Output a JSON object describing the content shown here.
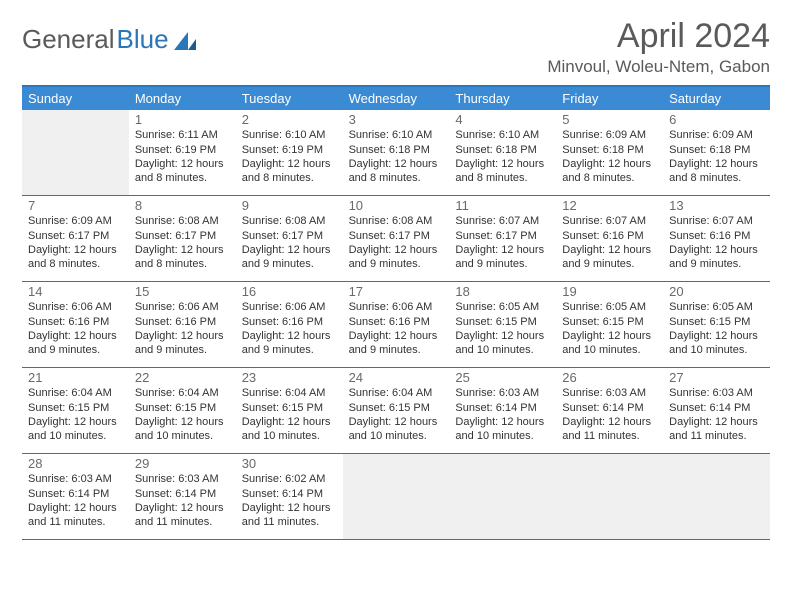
{
  "brand": {
    "text1": "General",
    "text2": "Blue"
  },
  "title": "April 2024",
  "location": "Minvoul, Woleu-Ntem, Gabon",
  "colors": {
    "header_bg": "#3b8bd4",
    "border": "#2a76b9",
    "text": "#333333",
    "muted": "#6a6a6a",
    "empty_bg": "#f0f0f0"
  },
  "daynames": [
    "Sunday",
    "Monday",
    "Tuesday",
    "Wednesday",
    "Thursday",
    "Friday",
    "Saturday"
  ],
  "weeks": [
    [
      {
        "n": "",
        "rise": "",
        "set": "",
        "day": ""
      },
      {
        "n": "1",
        "rise": "Sunrise: 6:11 AM",
        "set": "Sunset: 6:19 PM",
        "day": "Daylight: 12 hours and 8 minutes."
      },
      {
        "n": "2",
        "rise": "Sunrise: 6:10 AM",
        "set": "Sunset: 6:19 PM",
        "day": "Daylight: 12 hours and 8 minutes."
      },
      {
        "n": "3",
        "rise": "Sunrise: 6:10 AM",
        "set": "Sunset: 6:18 PM",
        "day": "Daylight: 12 hours and 8 minutes."
      },
      {
        "n": "4",
        "rise": "Sunrise: 6:10 AM",
        "set": "Sunset: 6:18 PM",
        "day": "Daylight: 12 hours and 8 minutes."
      },
      {
        "n": "5",
        "rise": "Sunrise: 6:09 AM",
        "set": "Sunset: 6:18 PM",
        "day": "Daylight: 12 hours and 8 minutes."
      },
      {
        "n": "6",
        "rise": "Sunrise: 6:09 AM",
        "set": "Sunset: 6:18 PM",
        "day": "Daylight: 12 hours and 8 minutes."
      }
    ],
    [
      {
        "n": "7",
        "rise": "Sunrise: 6:09 AM",
        "set": "Sunset: 6:17 PM",
        "day": "Daylight: 12 hours and 8 minutes."
      },
      {
        "n": "8",
        "rise": "Sunrise: 6:08 AM",
        "set": "Sunset: 6:17 PM",
        "day": "Daylight: 12 hours and 8 minutes."
      },
      {
        "n": "9",
        "rise": "Sunrise: 6:08 AM",
        "set": "Sunset: 6:17 PM",
        "day": "Daylight: 12 hours and 9 minutes."
      },
      {
        "n": "10",
        "rise": "Sunrise: 6:08 AM",
        "set": "Sunset: 6:17 PM",
        "day": "Daylight: 12 hours and 9 minutes."
      },
      {
        "n": "11",
        "rise": "Sunrise: 6:07 AM",
        "set": "Sunset: 6:17 PM",
        "day": "Daylight: 12 hours and 9 minutes."
      },
      {
        "n": "12",
        "rise": "Sunrise: 6:07 AM",
        "set": "Sunset: 6:16 PM",
        "day": "Daylight: 12 hours and 9 minutes."
      },
      {
        "n": "13",
        "rise": "Sunrise: 6:07 AM",
        "set": "Sunset: 6:16 PM",
        "day": "Daylight: 12 hours and 9 minutes."
      }
    ],
    [
      {
        "n": "14",
        "rise": "Sunrise: 6:06 AM",
        "set": "Sunset: 6:16 PM",
        "day": "Daylight: 12 hours and 9 minutes."
      },
      {
        "n": "15",
        "rise": "Sunrise: 6:06 AM",
        "set": "Sunset: 6:16 PM",
        "day": "Daylight: 12 hours and 9 minutes."
      },
      {
        "n": "16",
        "rise": "Sunrise: 6:06 AM",
        "set": "Sunset: 6:16 PM",
        "day": "Daylight: 12 hours and 9 minutes."
      },
      {
        "n": "17",
        "rise": "Sunrise: 6:06 AM",
        "set": "Sunset: 6:16 PM",
        "day": "Daylight: 12 hours and 9 minutes."
      },
      {
        "n": "18",
        "rise": "Sunrise: 6:05 AM",
        "set": "Sunset: 6:15 PM",
        "day": "Daylight: 12 hours and 10 minutes."
      },
      {
        "n": "19",
        "rise": "Sunrise: 6:05 AM",
        "set": "Sunset: 6:15 PM",
        "day": "Daylight: 12 hours and 10 minutes."
      },
      {
        "n": "20",
        "rise": "Sunrise: 6:05 AM",
        "set": "Sunset: 6:15 PM",
        "day": "Daylight: 12 hours and 10 minutes."
      }
    ],
    [
      {
        "n": "21",
        "rise": "Sunrise: 6:04 AM",
        "set": "Sunset: 6:15 PM",
        "day": "Daylight: 12 hours and 10 minutes."
      },
      {
        "n": "22",
        "rise": "Sunrise: 6:04 AM",
        "set": "Sunset: 6:15 PM",
        "day": "Daylight: 12 hours and 10 minutes."
      },
      {
        "n": "23",
        "rise": "Sunrise: 6:04 AM",
        "set": "Sunset: 6:15 PM",
        "day": "Daylight: 12 hours and 10 minutes."
      },
      {
        "n": "24",
        "rise": "Sunrise: 6:04 AM",
        "set": "Sunset: 6:15 PM",
        "day": "Daylight: 12 hours and 10 minutes."
      },
      {
        "n": "25",
        "rise": "Sunrise: 6:03 AM",
        "set": "Sunset: 6:14 PM",
        "day": "Daylight: 12 hours and 10 minutes."
      },
      {
        "n": "26",
        "rise": "Sunrise: 6:03 AM",
        "set": "Sunset: 6:14 PM",
        "day": "Daylight: 12 hours and 11 minutes."
      },
      {
        "n": "27",
        "rise": "Sunrise: 6:03 AM",
        "set": "Sunset: 6:14 PM",
        "day": "Daylight: 12 hours and 11 minutes."
      }
    ],
    [
      {
        "n": "28",
        "rise": "Sunrise: 6:03 AM",
        "set": "Sunset: 6:14 PM",
        "day": "Daylight: 12 hours and 11 minutes."
      },
      {
        "n": "29",
        "rise": "Sunrise: 6:03 AM",
        "set": "Sunset: 6:14 PM",
        "day": "Daylight: 12 hours and 11 minutes."
      },
      {
        "n": "30",
        "rise": "Sunrise: 6:02 AM",
        "set": "Sunset: 6:14 PM",
        "day": "Daylight: 12 hours and 11 minutes."
      },
      {
        "n": "",
        "rise": "",
        "set": "",
        "day": ""
      },
      {
        "n": "",
        "rise": "",
        "set": "",
        "day": ""
      },
      {
        "n": "",
        "rise": "",
        "set": "",
        "day": ""
      },
      {
        "n": "",
        "rise": "",
        "set": "",
        "day": ""
      }
    ]
  ]
}
